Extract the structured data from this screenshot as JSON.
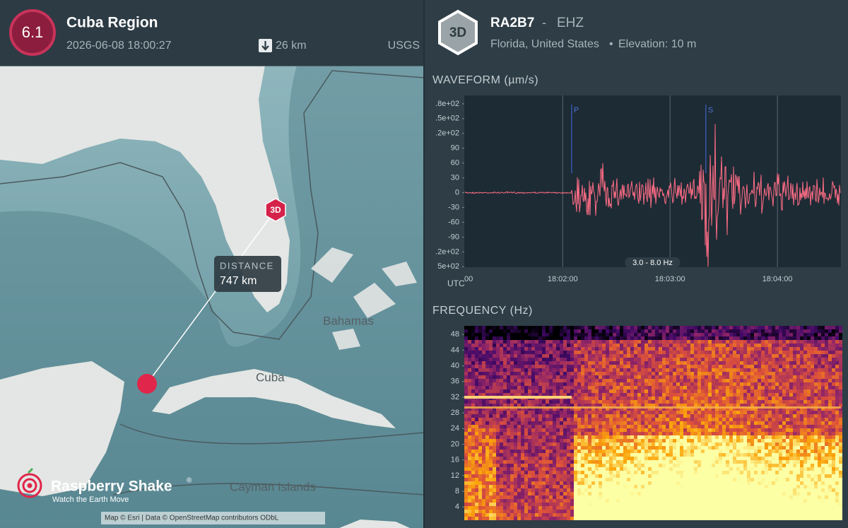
{
  "event": {
    "magnitude": "6.1",
    "region": "Cuba Region",
    "time": "2026-06-08 18:00:27",
    "depth": "26 km",
    "source": "USGS"
  },
  "map": {
    "distance_label": "DISTANCE",
    "distance": "747 km",
    "station_marker": "3D",
    "places": [
      "Bahamas",
      "Cuba",
      "Cayman Islands"
    ],
    "attribution": "Map © Esri | Data © OpenStreetMap contributors ODbL",
    "brand": "Raspberry Shake",
    "brand_mark": "®",
    "tagline": "Watch the Earth Move"
  },
  "station": {
    "badge": "3D",
    "code": "RA2B7",
    "separator": "-",
    "channel": "EHZ",
    "location": "Florida, United States",
    "bullet": "•",
    "elevation": "Elevation: 10 m"
  },
  "waveform": {
    "title": "WAVEFORM (µm/s)",
    "ylim": [
      -151,
      197
    ],
    "yticks": [
      {
        "value": 180,
        "label": ".8e+02"
      },
      {
        "value": 150,
        "label": ".5e+02"
      },
      {
        "value": 120,
        "label": ".2e+02"
      },
      90,
      60,
      30,
      0,
      -30,
      -60,
      -90,
      {
        "value": -120,
        "label": ".2e+02"
      },
      {
        "value": -150,
        "label": "5e+02"
      }
    ],
    "xlim": [
      65,
      275.5
    ],
    "xticks": [
      {
        "value": 60,
        "label": "00"
      },
      {
        "value": 120,
        "label": "18:02:00"
      },
      {
        "value": 180,
        "label": "18:03:00"
      },
      {
        "value": 240,
        "label": "18:04:00"
      }
    ],
    "x_axis_label": "UTC",
    "phases": [
      {
        "label": "P",
        "time": 125
      },
      {
        "label": "S",
        "time": 200
      }
    ],
    "filter": "3.0 - 8.0 Hz"
  },
  "spectrogram": {
    "title": "FREQUENCY (Hz)",
    "ylim": [
      0.8,
      50.2
    ],
    "yticks": [
      4,
      8,
      12,
      16,
      20,
      24,
      28,
      32,
      36,
      40,
      44,
      48
    ]
  }
}
